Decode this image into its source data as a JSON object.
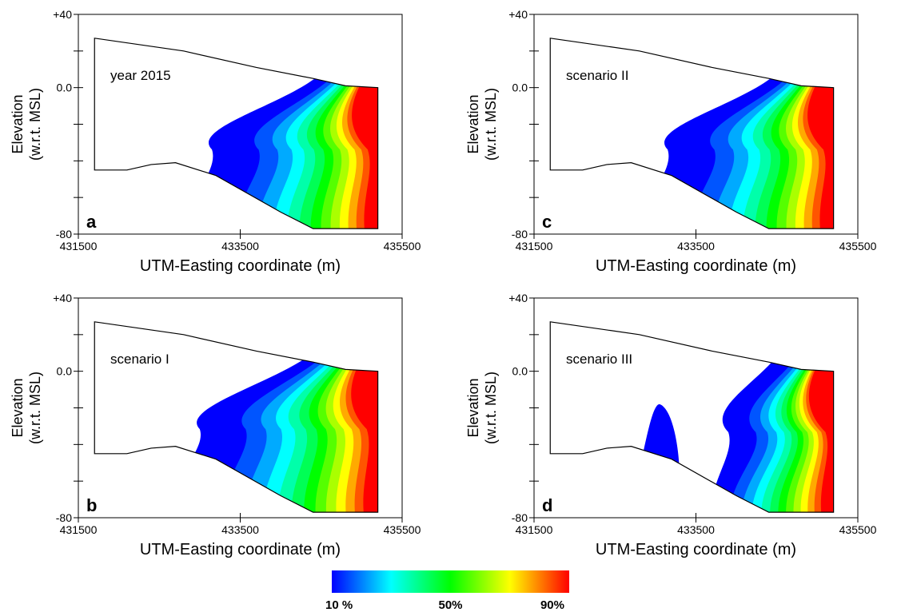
{
  "chart_data": {
    "type": "contour",
    "x_range": [
      431500,
      435500
    ],
    "y_range": [
      -80,
      40
    ],
    "panels": [
      {
        "letter": "a",
        "label": "year 2015",
        "variant": "base"
      },
      {
        "letter": "b",
        "label": "scenario I",
        "variant": "wide"
      },
      {
        "letter": "c",
        "label": "scenario II",
        "variant": "base"
      },
      {
        "letter": "d",
        "label": "scenario III",
        "variant": "split"
      }
    ],
    "xaxis": {
      "title": "UTM-Easting coordinate (m)",
      "tick_values": [
        431500,
        433500,
        435500
      ],
      "tick_labels": [
        "431500",
        "433500",
        "435500"
      ]
    },
    "yaxis": {
      "title_line1": "Elevation",
      "title_line2": "(w.r.t. MSL)",
      "tick_values": [
        40,
        0,
        -80
      ],
      "tick_labels": [
        "+40",
        "0.0",
        "-80"
      ]
    },
    "domain_top": [
      [
        431700,
        27
      ],
      [
        432800,
        20
      ],
      [
        433700,
        11
      ],
      [
        434400,
        5
      ],
      [
        434800,
        1
      ],
      [
        435200,
        0
      ]
    ],
    "domain_bottom": [
      [
        431700,
        -45
      ],
      [
        432100,
        -45
      ],
      [
        432400,
        -42
      ],
      [
        432700,
        -41
      ],
      [
        433200,
        -48
      ],
      [
        434000,
        -68
      ],
      [
        434400,
        -77
      ],
      [
        435200,
        -77
      ]
    ],
    "right_boundary_x": 435200,
    "colorbar": {
      "colormap": "jet",
      "colors": [
        "#0000ff",
        "#0055ff",
        "#00aaff",
        "#00ffff",
        "#00ffaa",
        "#00ff55",
        "#00ff00",
        "#55ff00",
        "#aaff00",
        "#ffff00",
        "#ffaa00",
        "#ff5500",
        "#ff0000"
      ],
      "tick_labels": [
        "10 %",
        "50%",
        "90%"
      ],
      "tick_positions": [
        0.0,
        0.5,
        1.0
      ]
    }
  }
}
